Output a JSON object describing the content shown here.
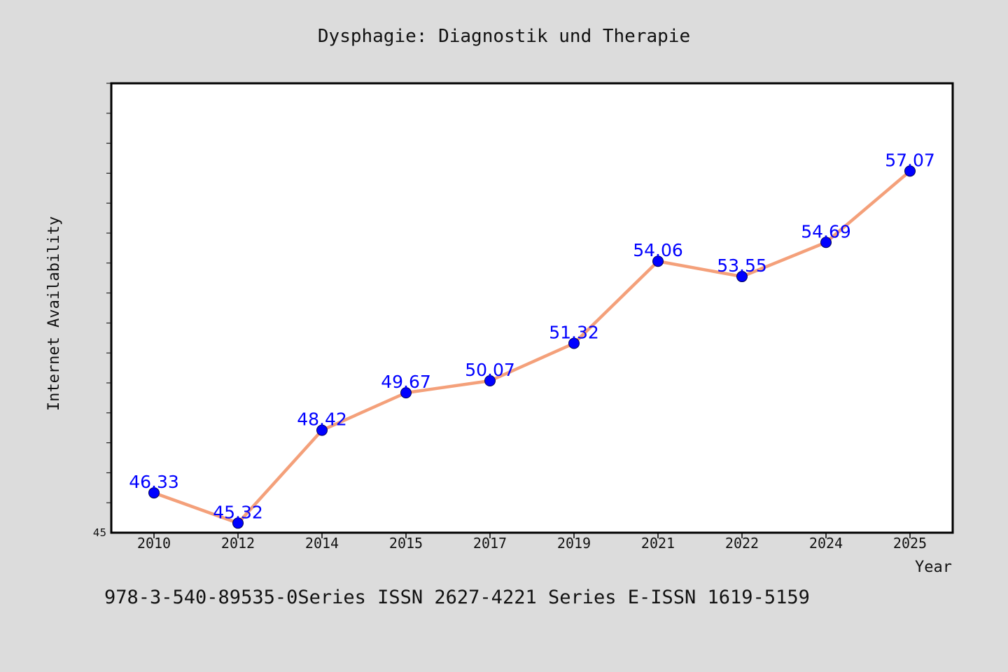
{
  "chart_data": {
    "type": "line",
    "title": "Dysphagie: Diagnostik und Therapie",
    "xlabel": "Year",
    "ylabel": "Internet Availability",
    "categories": [
      "2010",
      "2012",
      "2014",
      "2015",
      "2017",
      "2019",
      "2021",
      "2022",
      "2024",
      "2025"
    ],
    "values": [
      46.33,
      45.32,
      48.42,
      49.67,
      50.07,
      51.32,
      54.06,
      53.55,
      54.69,
      57.07
    ],
    "data_labels": [
      "46.33",
      "45.32",
      "48.42",
      "49.67",
      "50.07",
      "51.32",
      "54.06",
      "53.55",
      "54.69",
      "57.07"
    ],
    "ylim": [
      45,
      60
    ],
    "y_tick_labels": [
      "45"
    ],
    "grid": false,
    "line_color": "#f4a07a",
    "marker_color": "#0000ff",
    "label_color": "#0000ff"
  },
  "footer": {
    "text": "978-3-540-89535-0Series ISSN 2627-4221 Series E-ISSN 1619-5159"
  }
}
